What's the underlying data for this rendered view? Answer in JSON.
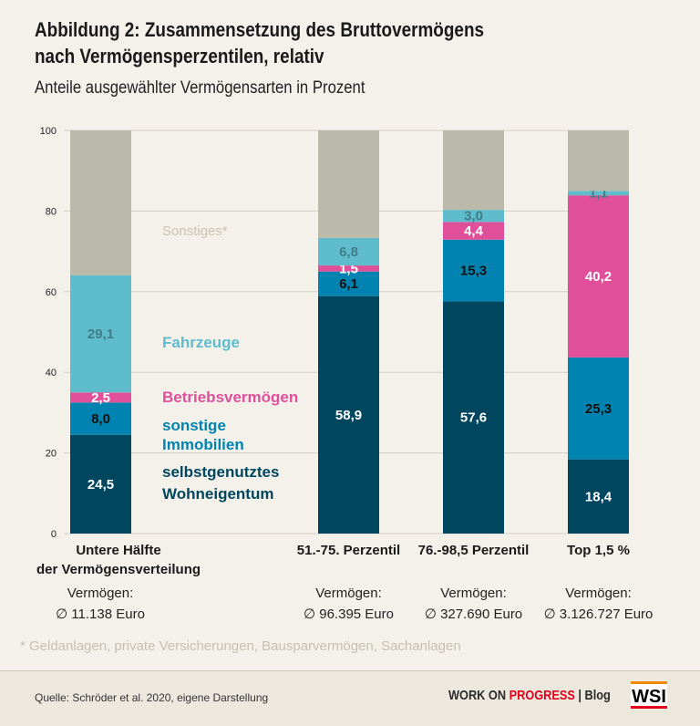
{
  "title_line1": "Abbildung 2: Zusammensetzung des Bruttovermögens",
  "title_line2": "nach Vermögensperzentilen, relativ",
  "subtitle": "Anteile ausgewählter Vermögensarten in Prozent",
  "chart_data": {
    "type": "bar",
    "stacked": true,
    "ylim": [
      0,
      100
    ],
    "yticks": [
      0,
      20,
      40,
      60,
      80,
      100
    ],
    "grid": true,
    "categories": [
      {
        "label_lines": [
          "Untere Hälfte",
          "der Vermögensverteilung"
        ],
        "wealth_label": "Vermögen:",
        "wealth_value": "∅ 11.138 Euro"
      },
      {
        "label_lines": [
          "51.-75. Perzentil"
        ],
        "wealth_label": "Vermögen:",
        "wealth_value": "∅ 96.395 Euro"
      },
      {
        "label_lines": [
          "76.-98,5 Perzentil"
        ],
        "wealth_label": "Vermögen:",
        "wealth_value": "∅ 327.690 Euro"
      },
      {
        "label_lines": [
          "Top 1,5 %"
        ],
        "wealth_label": "Vermögen:",
        "wealth_value": "∅ 3.126.727 Euro"
      }
    ],
    "series": [
      {
        "name_lines": [
          "selbstgenutztes",
          "Wohneigentum"
        ],
        "color": "#00465f",
        "values": [
          24.5,
          58.9,
          57.6,
          18.4
        ],
        "labels": [
          "24,5",
          "58,9",
          "57,6",
          "18,4"
        ]
      },
      {
        "name_lines": [
          "sonstige",
          "Immobilien"
        ],
        "color": "#0083b0",
        "values": [
          8.0,
          6.1,
          15.3,
          25.3
        ],
        "labels": [
          "8,0",
          "6,1",
          "15,3",
          "25,3"
        ]
      },
      {
        "name_lines": [
          "Betriebsvermögen"
        ],
        "color": "#e0509a",
        "values": [
          2.5,
          1.5,
          4.4,
          40.2
        ],
        "labels": [
          "2,5",
          "1,5",
          "4,4",
          "40,2"
        ]
      },
      {
        "name_lines": [
          "Fahrzeuge"
        ],
        "color": "#5fbccc",
        "values": [
          29.1,
          6.8,
          3.0,
          1.1
        ],
        "labels": [
          "29,1",
          "6,8",
          "3,0",
          "1,1"
        ]
      },
      {
        "name_lines": [
          "Sonstiges*"
        ],
        "color": "#bbb9aa",
        "values": [
          35.9,
          26.7,
          19.7,
          15.0
        ],
        "labels": []
      }
    ]
  },
  "footnote": "*  Geldanlagen, private Versicherungen, Bausparvermögen, Sachanlagen",
  "footer": {
    "source": "Quelle: Schröder et al. 2020, eigene Darstellung",
    "brand_a": "WORK ON ",
    "brand_b": "PROGRESS",
    "brand_c": "  |  Blog",
    "logo": "WSI"
  }
}
